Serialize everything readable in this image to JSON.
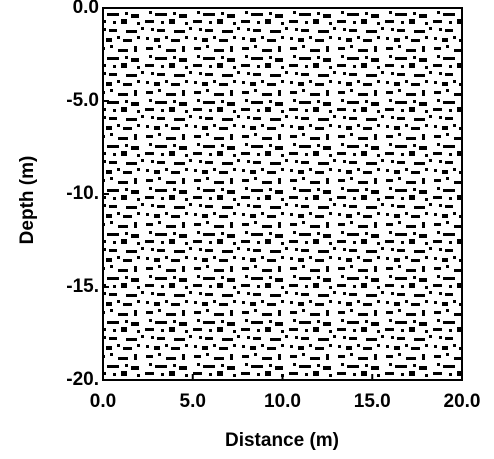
{
  "chart_data": {
    "type": "heatmap",
    "x_label": "Distance (m)",
    "y_label": "Depth (m)",
    "xlim": [
      0,
      20
    ],
    "ylim": [
      -20,
      0
    ],
    "xticks": [
      {
        "value": 0,
        "label": "0.0"
      },
      {
        "value": 5,
        "label": "5.0"
      },
      {
        "value": 10,
        "label": "10.0"
      },
      {
        "value": 15,
        "label": "15.0"
      },
      {
        "value": 20,
        "label": "20.0"
      }
    ],
    "yticks": [
      {
        "value": 0,
        "label": "0.0"
      },
      {
        "value": -5,
        "label": "-5.0"
      },
      {
        "value": -10,
        "label": "-10."
      },
      {
        "value": -15,
        "label": "-15."
      },
      {
        "value": -20,
        "label": "-20."
      }
    ]
  }
}
